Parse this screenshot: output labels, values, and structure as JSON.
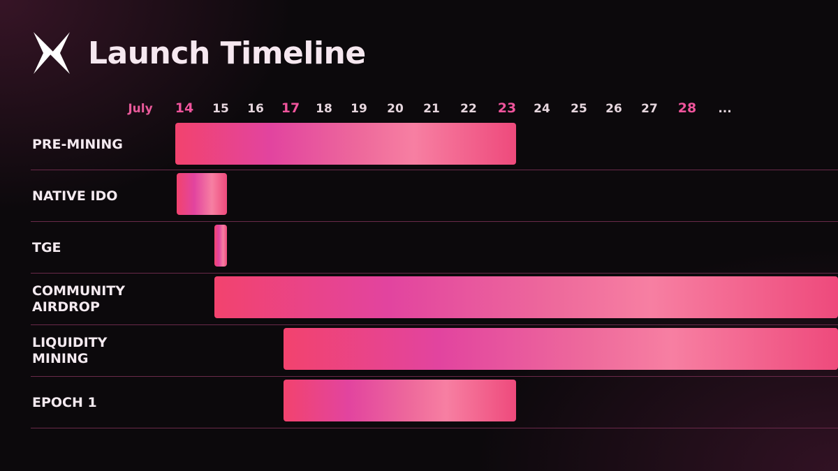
{
  "header": {
    "logo_icon": "x-cross-logo-icon",
    "title": "Launch Timeline"
  },
  "chart_data": {
    "type": "gantt",
    "title": "Launch Timeline",
    "month_label": "July",
    "days": [
      "14",
      "15",
      "16",
      "17",
      "18",
      "19",
      "20",
      "21",
      "22",
      "23",
      "24",
      "25",
      "26",
      "27",
      "28",
      "..."
    ],
    "highlighted_days": [
      "14",
      "17",
      "23",
      "28"
    ],
    "tasks": [
      {
        "label": "PRE-MINING",
        "start": 14,
        "end": 23
      },
      {
        "label": "NATIVE IDO",
        "start": 14,
        "end": 15
      },
      {
        "label": "TGE",
        "start": 15,
        "end": 15
      },
      {
        "label": "COMMUNITY AIRDROP",
        "start": 15,
        "end": null,
        "open_ended": true
      },
      {
        "label": "LIQUIDITY MINING",
        "start": 17,
        "end": null,
        "open_ended": true
      },
      {
        "label": "EPOCH 1",
        "start": 17,
        "end": 23
      }
    ],
    "colors": {
      "accent": "#f0549c",
      "bar_gradient": [
        "#f2436e",
        "#e2449f",
        "#f77fa2",
        "#ee4a7c"
      ],
      "divider": "#6a2a4a",
      "background": "#0c090c"
    }
  }
}
